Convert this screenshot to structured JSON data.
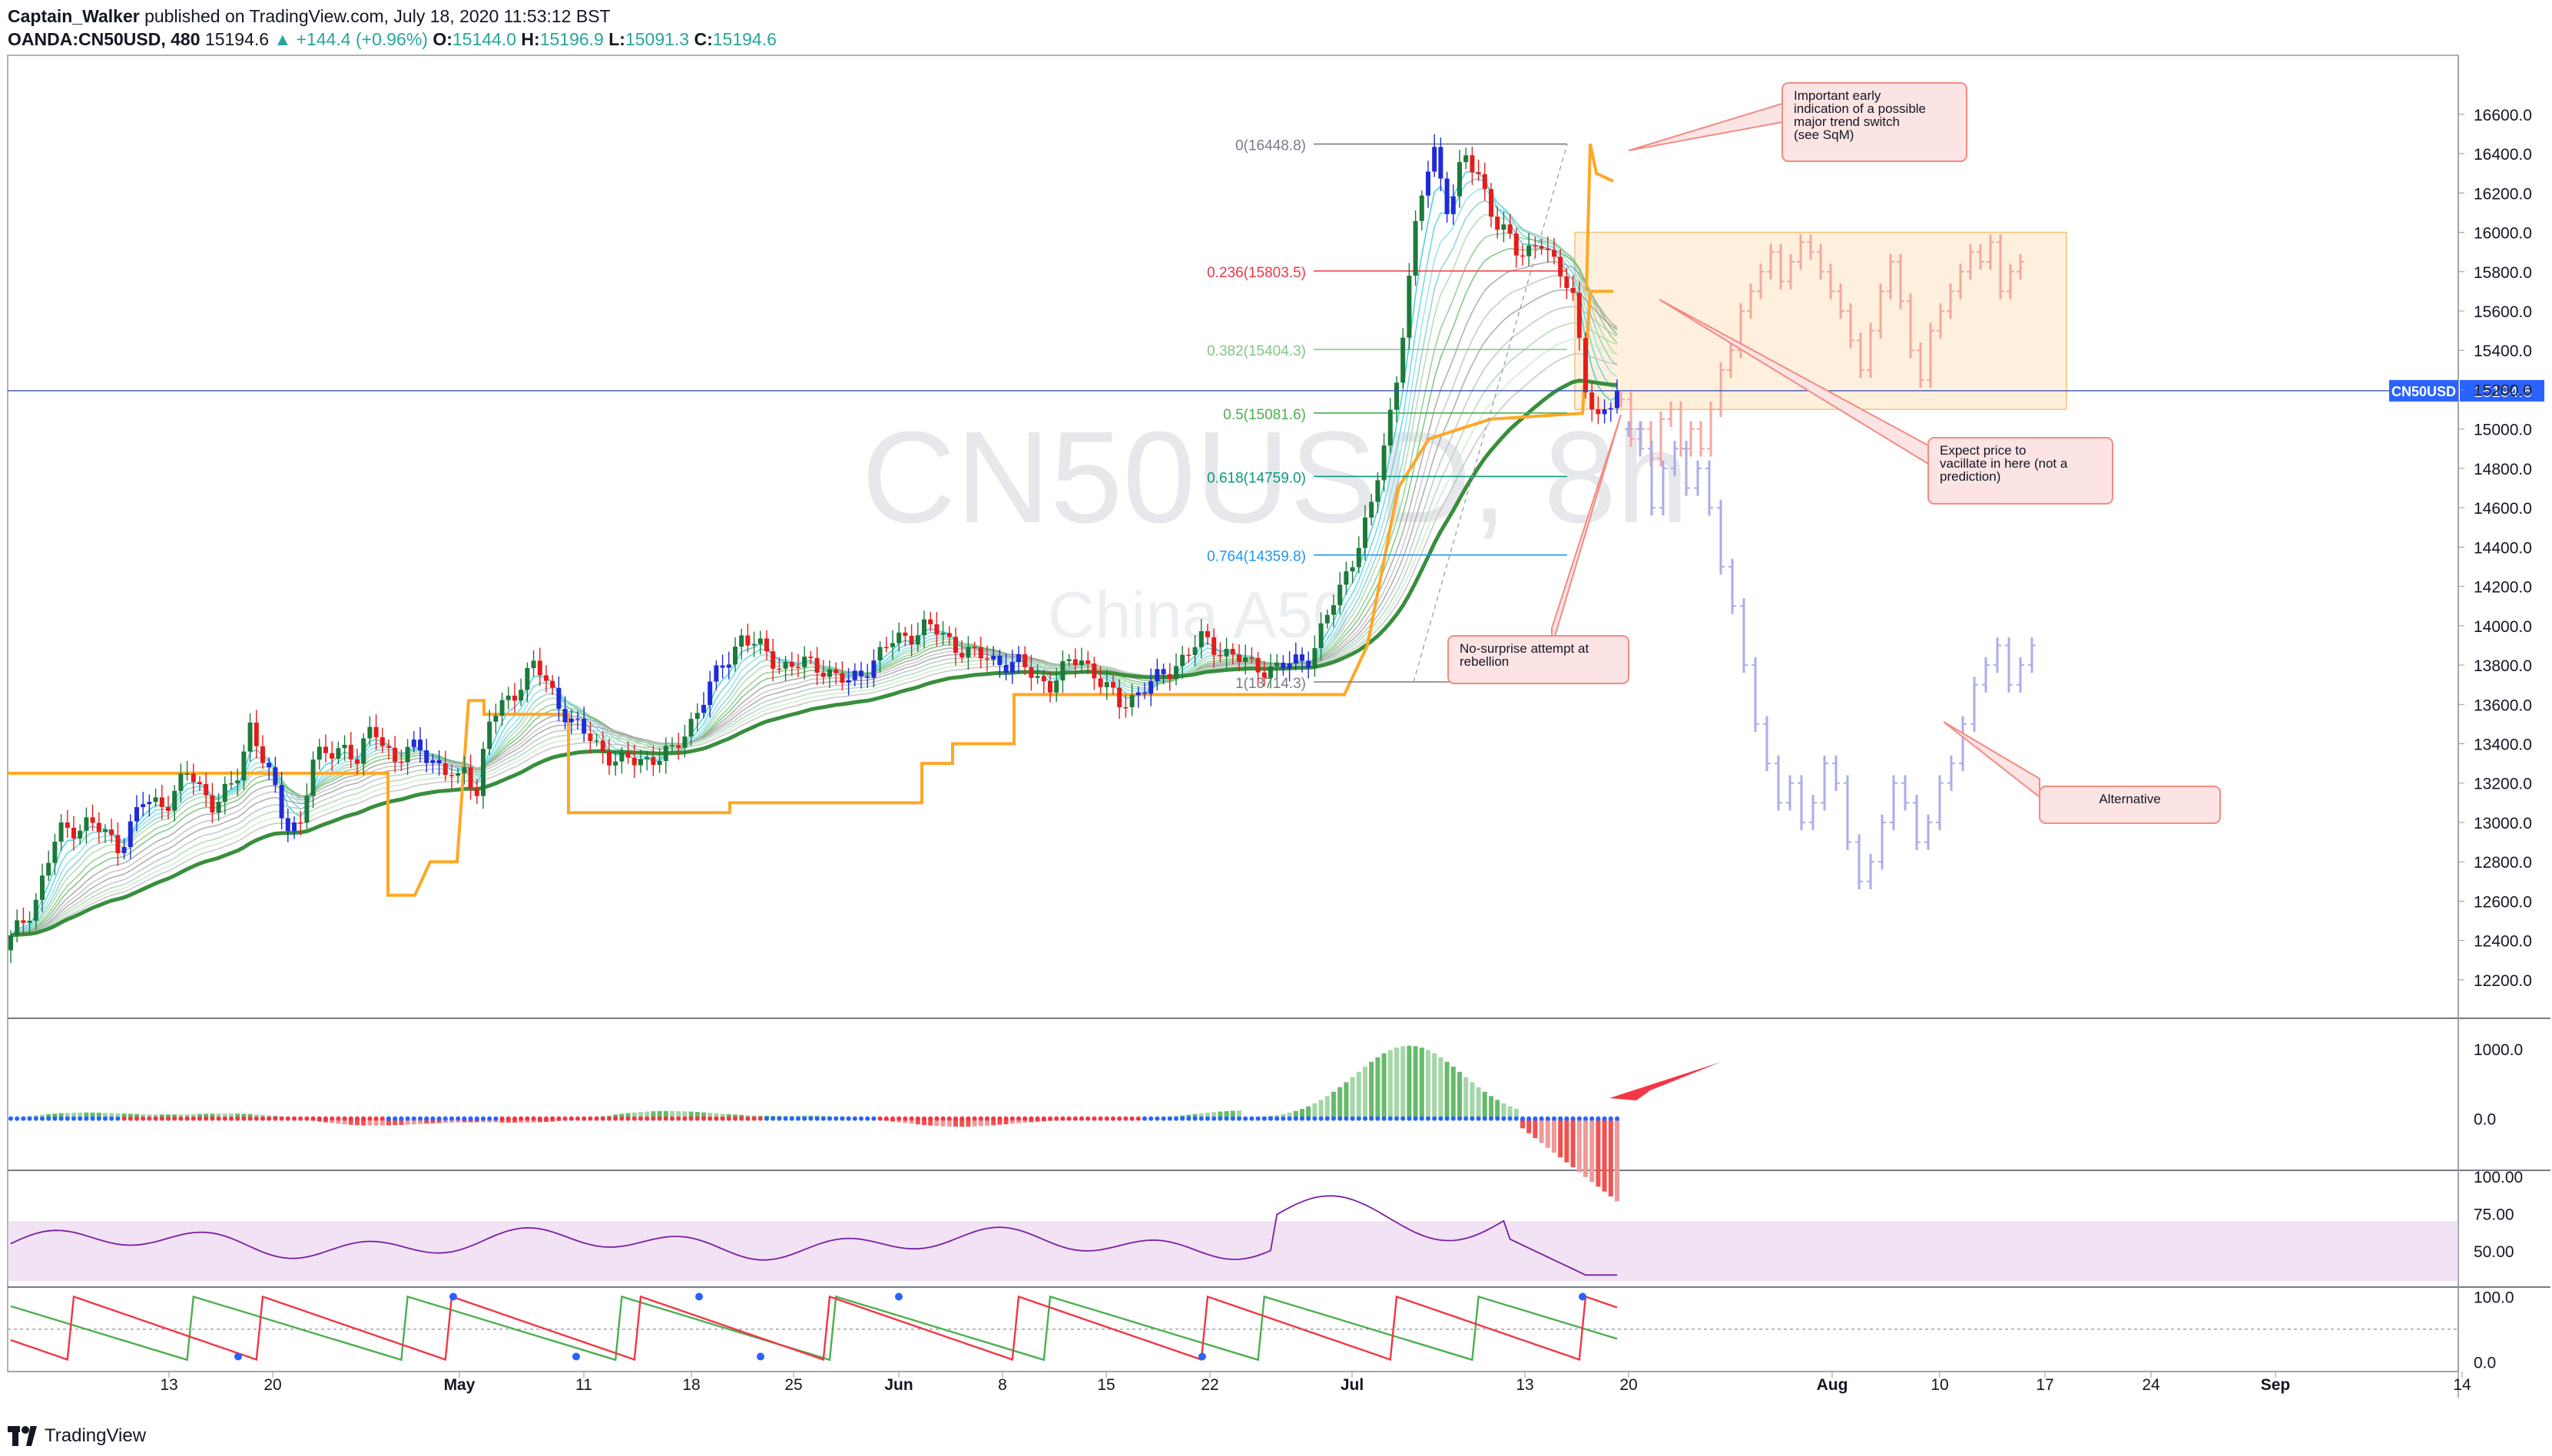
{
  "header": {
    "author": "Captain_Walker",
    "published_text": "published on TradingView.com, July 18, 2020 11:53:12 BST",
    "symbol_line": "OANDA:CN50USD, 480",
    "last": "15194.6",
    "change": "+144.4 (+0.96%)",
    "o_label": "O:",
    "o": "15144.0",
    "h_label": "H:",
    "h": "15196.9",
    "l_label": "L:",
    "l": "15091.3",
    "c_label": "C:",
    "c": "15194.6"
  },
  "watermark": {
    "symbol": "CN50USD, 8h",
    "name": "China A50"
  },
  "footer": {
    "brand": "TradingView"
  },
  "colors": {
    "up": "#1b7a3a",
    "down": "#e51c1c",
    "neutral": "#1f2bd6",
    "ghost_red": "#f4a7a0",
    "ghost_blue": "#a9aee8",
    "orange": "#ffa726",
    "accent_blue": "#2962ff"
  },
  "chart_data": [
    {
      "type": "candlestick",
      "panel": "price",
      "y_axis_ticks": [
        12200,
        12400,
        12600,
        12800,
        13000,
        13200,
        13400,
        13600,
        13800,
        14000,
        14200,
        14400,
        14600,
        14800,
        15000,
        15200,
        15400,
        15600,
        15800,
        16000,
        16200,
        16400,
        16600
      ],
      "y_tick_labels": [
        "12200.0",
        "12400.0",
        "12600.0",
        "12800.0",
        "13000.0",
        "13200.0",
        "13400.0",
        "13600.0",
        "13800.0",
        "14000.0",
        "14200.0",
        "14400.0",
        "14600.0",
        "14800.0",
        "15000.0",
        "15200.0",
        "15400.0",
        "15600.0",
        "15800.0",
        "16000.0",
        "16200.0",
        "16400.0",
        "16600.0"
      ],
      "ylim": [
        12020,
        16900
      ],
      "x_tick_labels": [
        "13",
        "20",
        "May",
        "11",
        "18",
        "25",
        "Jun",
        "8",
        "15",
        "22",
        "Jul",
        "13",
        "20",
        "Aug",
        "10",
        "17",
        "24",
        "Sep",
        "14"
      ],
      "current_price": {
        "label": "CN50USD",
        "value": 15194.6,
        "value_text": "15194.6"
      },
      "fibonacci": [
        {
          "label": "0(16448.8)",
          "value": 16448.8,
          "color": "#787b86"
        },
        {
          "label": "0.236(15803.5)",
          "value": 15803.5,
          "color": "#f23645"
        },
        {
          "label": "0.382(15404.3)",
          "value": 15404.3,
          "color": "#81c784"
        },
        {
          "label": "0.5(15081.6)",
          "value": 15081.6,
          "color": "#4caf50"
        },
        {
          "label": "0.618(14759.0)",
          "value": 14759.0,
          "color": "#089981"
        },
        {
          "label": "0.764(14359.8)",
          "value": 14359.8,
          "color": "#2196f3"
        },
        {
          "label": "1(13714.3)",
          "value": 13714.3,
          "color": "#787b86"
        }
      ],
      "annotations": [
        {
          "text": [
            "Important early",
            "indication of a possible",
            "major trend switch",
            "(see SqM)"
          ]
        },
        {
          "text": [
            "Expect price to",
            "vacillate in here (not a",
            "prediction)"
          ]
        },
        {
          "text": [
            "No-surprise attempt at",
            "rebellion"
          ]
        },
        {
          "text": [
            "Alternative"
          ]
        }
      ]
    },
    {
      "type": "bar",
      "panel": "squeeze-momentum",
      "y_tick_labels": [
        "1000.0",
        "0.0"
      ],
      "ylim": [
        -700,
        1400
      ]
    },
    {
      "type": "line",
      "panel": "rsi",
      "y_tick_labels": [
        "100.00",
        "75.00",
        "50.00"
      ],
      "band": [
        30,
        70
      ],
      "ylim": [
        28,
        102
      ]
    },
    {
      "type": "line",
      "panel": "aroon",
      "y_tick_labels": [
        "100.0",
        "0.0"
      ],
      "ylim": [
        -15,
        110
      ],
      "series": [
        {
          "color": "#4caf50"
        },
        {
          "color": "#f23645"
        }
      ]
    }
  ]
}
